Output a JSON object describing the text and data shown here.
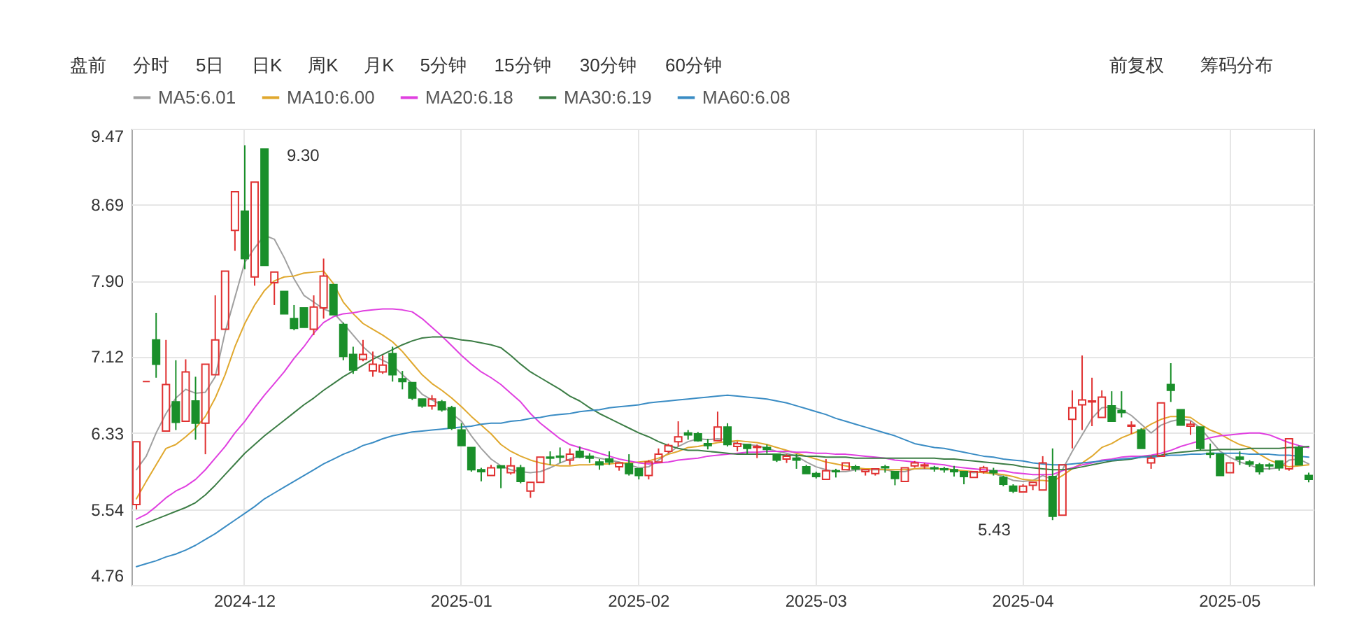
{
  "chart_data": {
    "type": "candlestick",
    "categories": [
      null,
      null,
      null,
      null,
      null,
      null,
      null,
      null,
      null,
      null,
      null,
      "2024-12",
      null,
      null,
      null,
      null,
      null,
      null,
      null,
      null,
      null,
      null,
      null,
      null,
      null,
      null,
      null,
      null,
      null,
      null,
      null,
      null,
      null,
      "2025-01",
      null,
      null,
      null,
      null,
      null,
      null,
      null,
      null,
      null,
      null,
      null,
      null,
      null,
      null,
      null,
      null,
      null,
      "2025-02",
      null,
      null,
      null,
      null,
      null,
      null,
      null,
      null,
      null,
      null,
      null,
      null,
      null,
      null,
      null,
      null,
      null,
      "2025-03",
      null,
      null,
      null,
      null,
      null,
      null,
      null,
      null,
      null,
      null,
      null,
      null,
      null,
      null,
      null,
      null,
      null,
      null,
      null,
      null,
      "2025-04",
      null,
      null,
      null,
      null,
      null,
      null,
      null,
      null,
      null,
      null,
      null,
      null,
      null,
      null,
      null,
      null,
      null,
      null,
      null,
      null,
      "2025-05",
      null,
      null,
      null,
      null,
      null,
      null,
      null,
      null
    ],
    "ohlc": [
      [
        5.59,
        6.24,
        5.54,
        6.24
      ],
      [
        6.86,
        6.86,
        6.86,
        6.86
      ],
      [
        7.29,
        7.57,
        6.9,
        7.04
      ],
      [
        6.35,
        7.29,
        6.35,
        6.83
      ],
      [
        6.65,
        7.08,
        6.36,
        6.44
      ],
      [
        6.45,
        7.09,
        6.45,
        6.96
      ],
      [
        6.66,
        6.91,
        6.26,
        6.43
      ],
      [
        6.43,
        7.04,
        6.11,
        7.04
      ],
      [
        6.93,
        7.75,
        6.93,
        7.29
      ],
      [
        7.4,
        8.0,
        7.4,
        8.0
      ],
      [
        8.42,
        8.82,
        8.21,
        8.82
      ],
      [
        8.62,
        9.3,
        8.02,
        8.13
      ],
      [
        7.94,
        8.92,
        7.85,
        8.92
      ],
      [
        9.26,
        9.26,
        8.06,
        8.06
      ],
      [
        7.88,
        7.99,
        7.65,
        7.99
      ],
      [
        7.79,
        7.79,
        7.56,
        7.56
      ],
      [
        7.51,
        7.65,
        7.39,
        7.41
      ],
      [
        7.62,
        7.62,
        7.42,
        7.42
      ],
      [
        7.4,
        7.75,
        7.34,
        7.63
      ],
      [
        7.62,
        8.13,
        7.51,
        7.95
      ],
      [
        7.86,
        7.86,
        7.55,
        7.55
      ],
      [
        7.45,
        7.47,
        7.08,
        7.12
      ],
      [
        7.14,
        7.22,
        6.94,
        6.98
      ],
      [
        7.09,
        7.29,
        7.07,
        7.14
      ],
      [
        6.97,
        7.17,
        6.91,
        7.04
      ],
      [
        6.96,
        7.13,
        6.94,
        7.03
      ],
      [
        7.15,
        7.22,
        6.86,
        6.93
      ],
      [
        6.89,
        6.97,
        6.78,
        6.86
      ],
      [
        6.85,
        6.85,
        6.67,
        6.69
      ],
      [
        6.68,
        6.68,
        6.59,
        6.61
      ],
      [
        6.61,
        6.72,
        6.57,
        6.68
      ],
      [
        6.65,
        6.67,
        6.55,
        6.57
      ],
      [
        6.59,
        6.61,
        6.36,
        6.38
      ],
      [
        6.36,
        6.43,
        6.2,
        6.2
      ],
      [
        6.18,
        6.18,
        5.93,
        5.95
      ],
      [
        5.95,
        5.97,
        5.83,
        5.93
      ],
      [
        5.89,
        6.0,
        5.89,
        5.97
      ],
      [
        5.99,
        5.99,
        5.76,
        5.97
      ],
      [
        5.92,
        6.08,
        5.9,
        5.99
      ],
      [
        5.97,
        6.0,
        5.81,
        5.83
      ],
      [
        5.73,
        5.82,
        5.66,
        5.82
      ],
      [
        5.82,
        6.08,
        5.82,
        6.08
      ],
      [
        6.08,
        6.14,
        6.0,
        6.07
      ],
      [
        6.09,
        6.18,
        6.02,
        6.08
      ],
      [
        6.05,
        6.17,
        6.0,
        6.11
      ],
      [
        6.14,
        6.19,
        6.07,
        6.08
      ],
      [
        6.09,
        6.12,
        6.02,
        6.07
      ],
      [
        6.03,
        6.06,
        5.95,
        6.0
      ],
      [
        6.06,
        6.14,
        6.0,
        6.03
      ],
      [
        5.98,
        6.02,
        5.94,
        6.02
      ],
      [
        6.01,
        6.11,
        5.89,
        5.91
      ],
      [
        5.96,
        5.96,
        5.85,
        5.89
      ],
      [
        5.89,
        6.05,
        5.85,
        6.03
      ],
      [
        6.03,
        6.17,
        6.03,
        6.11
      ],
      [
        6.14,
        6.22,
        6.12,
        6.2
      ],
      [
        6.24,
        6.45,
        6.19,
        6.29
      ],
      [
        6.33,
        6.36,
        6.26,
        6.31
      ],
      [
        6.32,
        6.34,
        6.24,
        6.25
      ],
      [
        6.22,
        6.27,
        6.16,
        6.2
      ],
      [
        6.25,
        6.55,
        6.25,
        6.39
      ],
      [
        6.39,
        6.43,
        6.19,
        6.21
      ],
      [
        6.19,
        6.24,
        6.14,
        6.22
      ],
      [
        6.21,
        6.21,
        6.11,
        6.17
      ],
      [
        6.18,
        6.21,
        6.07,
        6.19
      ],
      [
        6.18,
        6.21,
        6.12,
        6.16
      ],
      [
        6.11,
        6.11,
        6.03,
        6.05
      ],
      [
        6.06,
        6.11,
        6.02,
        6.09
      ],
      [
        6.07,
        6.11,
        5.96,
        6.05
      ],
      [
        5.98,
        6.0,
        5.91,
        5.91
      ],
      [
        5.91,
        5.93,
        5.86,
        5.88
      ],
      [
        5.85,
        6.06,
        5.85,
        5.94
      ],
      [
        5.94,
        5.96,
        5.87,
        5.93
      ],
      [
        5.95,
        6.02,
        5.95,
        6.02
      ],
      [
        5.98,
        6.0,
        5.93,
        5.96
      ],
      [
        5.93,
        5.95,
        5.89,
        5.95
      ],
      [
        5.91,
        5.96,
        5.89,
        5.96
      ],
      [
        5.98,
        6.0,
        5.92,
        5.97
      ],
      [
        5.93,
        5.93,
        5.79,
        5.86
      ],
      [
        5.83,
        5.97,
        5.83,
        5.97
      ],
      [
        5.99,
        6.04,
        5.97,
        6.02
      ],
      [
        5.99,
        6.02,
        5.96,
        6.0
      ],
      [
        5.97,
        5.99,
        5.93,
        5.96
      ],
      [
        5.96,
        5.98,
        5.92,
        5.95
      ],
      [
        5.95,
        5.99,
        5.88,
        5.93
      ],
      [
        5.93,
        5.93,
        5.8,
        5.88
      ],
      [
        5.87,
        5.93,
        5.87,
        5.93
      ],
      [
        5.93,
        5.99,
        5.91,
        5.97
      ],
      [
        5.94,
        5.97,
        5.89,
        5.92
      ],
      [
        5.87,
        5.89,
        5.78,
        5.8
      ],
      [
        5.78,
        5.8,
        5.71,
        5.73
      ],
      [
        5.72,
        5.8,
        5.72,
        5.78
      ],
      [
        5.79,
        5.82,
        5.74,
        5.82
      ],
      [
        5.74,
        6.09,
        5.74,
        6.02
      ],
      [
        5.88,
        6.17,
        5.43,
        5.47
      ],
      [
        5.48,
        6.0,
        5.48,
        6.0
      ],
      [
        6.47,
        6.77,
        6.17,
        6.59
      ],
      [
        6.62,
        7.13,
        6.36,
        6.67
      ],
      [
        6.65,
        6.9,
        6.4,
        6.66
      ],
      [
        6.49,
        6.77,
        6.49,
        6.7
      ],
      [
        6.61,
        6.76,
        6.45,
        6.45
      ],
      [
        6.56,
        6.76,
        6.49,
        6.54
      ],
      [
        6.4,
        6.45,
        6.32,
        6.41
      ],
      [
        6.36,
        6.38,
        6.17,
        6.17
      ],
      [
        6.02,
        6.09,
        5.96,
        6.07
      ],
      [
        6.09,
        6.64,
        6.09,
        6.64
      ],
      [
        6.83,
        7.05,
        6.65,
        6.77
      ],
      [
        6.57,
        6.57,
        6.41,
        6.41
      ],
      [
        6.4,
        6.45,
        6.31,
        6.42
      ],
      [
        6.39,
        6.39,
        6.15,
        6.17
      ],
      [
        6.12,
        6.22,
        6.07,
        6.11
      ],
      [
        6.11,
        6.11,
        5.89,
        5.89
      ],
      [
        5.92,
        6.02,
        5.92,
        6.02
      ],
      [
        6.08,
        6.14,
        6.0,
        6.06
      ],
      [
        6.03,
        6.05,
        5.98,
        6.01
      ],
      [
        6.0,
        6.02,
        5.9,
        5.93
      ],
      [
        6.0,
        6.02,
        5.95,
        5.99
      ],
      [
        6.04,
        6.04,
        5.94,
        5.97
      ],
      [
        5.96,
        6.27,
        5.94,
        6.27
      ],
      [
        6.18,
        6.2,
        6.0,
        6.0
      ],
      [
        5.89,
        5.92,
        5.82,
        5.85
      ]
    ],
    "colors": [
      "#e03131",
      "#e03131",
      "#1a8f2a",
      "#e03131",
      "#1a8f2a",
      "#e03131",
      "#1a8f2a",
      "#e03131",
      "#e03131",
      "#e03131",
      "#e03131",
      "#1a8f2a",
      "#e03131",
      "#1a8f2a",
      "#e03131",
      "#1a8f2a",
      "#1a8f2a",
      "#1a8f2a",
      "#e03131",
      "#e03131",
      "#1a8f2a",
      "#1a8f2a",
      "#1a8f2a",
      "#e03131",
      "#e03131",
      "#e03131",
      "#1a8f2a",
      "#1a8f2a",
      "#1a8f2a",
      "#1a8f2a",
      "#e03131",
      "#1a8f2a",
      "#1a8f2a",
      "#1a8f2a",
      "#1a8f2a",
      "#1a8f2a",
      "#e03131",
      "#1a8f2a",
      "#e03131",
      "#1a8f2a",
      "#e03131",
      "#e03131",
      "#1a8f2a",
      "#1a8f2a",
      "#e03131",
      "#1a8f2a",
      "#1a8f2a",
      "#1a8f2a",
      "#1a8f2a",
      "#e03131",
      "#1a8f2a",
      "#1a8f2a",
      "#e03131",
      "#e03131",
      "#e03131",
      "#e03131",
      "#1a8f2a",
      "#1a8f2a",
      "#1a8f2a",
      "#e03131",
      "#1a8f2a",
      "#e03131",
      "#1a8f2a",
      "#e03131",
      "#1a8f2a",
      "#1a8f2a",
      "#e03131",
      "#1a8f2a",
      "#1a8f2a",
      "#1a8f2a",
      "#e03131",
      "#1a8f2a",
      "#e03131",
      "#1a8f2a",
      "#e03131",
      "#e03131",
      "#1a8f2a",
      "#1a8f2a",
      "#e03131",
      "#e03131",
      "#e03131",
      "#1a8f2a",
      "#1a8f2a",
      "#1a8f2a",
      "#1a8f2a",
      "#e03131",
      "#e03131",
      "#1a8f2a",
      "#1a8f2a",
      "#1a8f2a",
      "#e03131",
      "#e03131",
      "#e03131",
      "#1a8f2a",
      "#e03131",
      "#e03131",
      "#e03131",
      "#e03131",
      "#e03131",
      "#1a8f2a",
      "#1a8f2a",
      "#e03131",
      "#1a8f2a",
      "#e03131",
      "#e03131",
      "#1a8f2a",
      "#1a8f2a",
      "#e03131",
      "#1a8f2a",
      "#1a8f2a",
      "#1a8f2a",
      "#e03131",
      "#1a8f2a",
      "#1a8f2a",
      "#1a8f2a",
      "#1a8f2a",
      "#1a8f2a",
      "#e03131",
      "#1a8f2a",
      "#1a8f2a"
    ],
    "series": [
      {
        "name": "MA5:6.01",
        "color": "#a0a0a0",
        "type": "line",
        "values": [
          5.95,
          6.09,
          6.33,
          6.53,
          6.69,
          6.78,
          6.74,
          6.75,
          6.91,
          7.37,
          7.73,
          8.09,
          8.24,
          8.37,
          8.33,
          8.14,
          7.92,
          7.75,
          7.68,
          7.61,
          7.57,
          7.46,
          7.34,
          7.22,
          7.13,
          7.08,
          7.03,
          6.93,
          6.84,
          6.73,
          6.67,
          6.62,
          6.53,
          6.45,
          6.3,
          6.17,
          6.06,
          5.99,
          5.95,
          5.93,
          5.92,
          5.93,
          5.97,
          6.02,
          6.06,
          6.09,
          6.09,
          6.07,
          6.05,
          6.03,
          6.0,
          5.97,
          5.98,
          6.05,
          6.12,
          6.19,
          6.24,
          6.27,
          6.26,
          6.27,
          6.26,
          6.22,
          6.21,
          6.2,
          6.17,
          6.14,
          6.12,
          6.09,
          6.03,
          5.98,
          5.95,
          5.93,
          5.93,
          5.95,
          5.95,
          5.95,
          5.95,
          5.93,
          5.93,
          5.96,
          5.96,
          5.96,
          5.96,
          5.95,
          5.93,
          5.92,
          5.93,
          5.91,
          5.88,
          5.84,
          5.83,
          5.84,
          5.89,
          5.85,
          5.95,
          6.14,
          6.31,
          6.48,
          6.59,
          6.6,
          6.57,
          6.51,
          6.42,
          6.33,
          6.41,
          6.45,
          6.47,
          6.46,
          6.38,
          6.26,
          6.14,
          6.08,
          6.03,
          6.0,
          5.96,
          5.96,
          5.97,
          6.05,
          6.06,
          6.01
        ]
      },
      {
        "name": "MA10:6.00",
        "color": "#e0a82e",
        "type": "line",
        "values": [
          5.65,
          5.83,
          6.0,
          6.17,
          6.21,
          6.29,
          6.38,
          6.5,
          6.69,
          6.93,
          7.22,
          7.46,
          7.65,
          7.8,
          7.9,
          7.94,
          7.95,
          7.98,
          7.99,
          8.0,
          7.87,
          7.68,
          7.56,
          7.46,
          7.4,
          7.34,
          7.27,
          7.17,
          7.05,
          6.93,
          6.84,
          6.77,
          6.69,
          6.6,
          6.5,
          6.41,
          6.32,
          6.21,
          6.14,
          6.09,
          6.05,
          6.02,
          6.0,
          5.99,
          5.99,
          6.0,
          6.0,
          6.01,
          6.01,
          6.02,
          6.02,
          6.03,
          6.04,
          6.07,
          6.11,
          6.14,
          6.18,
          6.19,
          6.21,
          6.23,
          6.24,
          6.25,
          6.24,
          6.23,
          6.21,
          6.18,
          6.15,
          6.12,
          6.09,
          6.06,
          6.03,
          6.01,
          5.99,
          5.97,
          5.96,
          5.96,
          5.95,
          5.95,
          5.95,
          5.96,
          5.97,
          5.96,
          5.96,
          5.95,
          5.94,
          5.93,
          5.92,
          5.91,
          5.9,
          5.88,
          5.85,
          5.84,
          5.84,
          5.83,
          5.89,
          5.96,
          6.02,
          6.09,
          6.18,
          6.22,
          6.28,
          6.32,
          6.36,
          6.42,
          6.47,
          6.5,
          6.5,
          6.49,
          6.42,
          6.36,
          6.32,
          6.26,
          6.21,
          6.18,
          6.11,
          6.05,
          6.01,
          5.98,
          5.99,
          6.0
        ]
      },
      {
        "name": "MA20:6.18",
        "color": "#e040e0",
        "type": "line",
        "values": [
          5.44,
          5.49,
          5.57,
          5.66,
          5.73,
          5.78,
          5.85,
          5.95,
          6.07,
          6.19,
          6.33,
          6.45,
          6.59,
          6.72,
          6.84,
          6.96,
          7.1,
          7.22,
          7.36,
          7.47,
          7.53,
          7.56,
          7.57,
          7.59,
          7.6,
          7.61,
          7.61,
          7.6,
          7.58,
          7.51,
          7.42,
          7.33,
          7.23,
          7.13,
          7.04,
          6.96,
          6.9,
          6.83,
          6.74,
          6.65,
          6.53,
          6.43,
          6.35,
          6.27,
          6.21,
          6.18,
          6.15,
          6.12,
          6.09,
          6.06,
          6.04,
          6.02,
          6.01,
          6.02,
          6.03,
          6.05,
          6.06,
          6.07,
          6.09,
          6.1,
          6.11,
          6.12,
          6.13,
          6.13,
          6.14,
          6.14,
          6.14,
          6.13,
          6.13,
          6.12,
          6.12,
          6.11,
          6.11,
          6.1,
          6.09,
          6.08,
          6.07,
          6.05,
          6.04,
          6.03,
          6.02,
          6.01,
          6.0,
          5.98,
          5.97,
          5.96,
          5.95,
          5.94,
          5.94,
          5.92,
          5.91,
          5.9,
          5.9,
          5.9,
          5.94,
          5.97,
          6.0,
          6.02,
          6.05,
          6.06,
          6.08,
          6.09,
          6.09,
          6.1,
          6.12,
          6.15,
          6.19,
          6.22,
          6.25,
          6.28,
          6.3,
          6.31,
          6.32,
          6.33,
          6.33,
          6.31,
          6.27,
          6.23,
          6.2,
          6.18
        ]
      },
      {
        "name": "MA30:6.19",
        "color": "#3c7d45",
        "type": "line",
        "values": [
          5.36,
          5.4,
          5.44,
          5.48,
          5.52,
          5.56,
          5.61,
          5.69,
          5.79,
          5.9,
          6.01,
          6.12,
          6.21,
          6.3,
          6.38,
          6.46,
          6.54,
          6.62,
          6.69,
          6.77,
          6.84,
          6.91,
          6.97,
          7.03,
          7.09,
          7.14,
          7.19,
          7.24,
          7.28,
          7.31,
          7.32,
          7.32,
          7.31,
          7.29,
          7.28,
          7.26,
          7.24,
          7.21,
          7.13,
          7.04,
          6.96,
          6.9,
          6.84,
          6.78,
          6.71,
          6.66,
          6.59,
          6.53,
          6.48,
          6.43,
          6.38,
          6.33,
          6.29,
          6.24,
          6.2,
          6.17,
          6.15,
          6.15,
          6.14,
          6.13,
          6.12,
          6.11,
          6.11,
          6.11,
          6.11,
          6.11,
          6.1,
          6.1,
          6.09,
          6.09,
          6.08,
          6.08,
          6.08,
          6.07,
          6.07,
          6.07,
          6.07,
          6.07,
          6.07,
          6.07,
          6.07,
          6.07,
          6.06,
          6.06,
          6.05,
          6.04,
          6.03,
          6.02,
          6.01,
          6.0,
          5.98,
          5.97,
          5.96,
          5.95,
          5.95,
          5.96,
          5.98,
          6.0,
          6.02,
          6.04,
          6.05,
          6.06,
          6.08,
          6.09,
          6.1,
          6.12,
          6.13,
          6.14,
          6.15,
          6.15,
          6.16,
          6.16,
          6.16,
          6.17,
          6.17,
          6.17,
          6.17,
          6.18,
          6.18,
          6.19
        ]
      },
      {
        "name": "MA60:6.08",
        "color": "#3a8cc4",
        "type": "line",
        "values": [
          4.95,
          4.98,
          5.01,
          5.05,
          5.08,
          5.12,
          5.17,
          5.23,
          5.29,
          5.36,
          5.43,
          5.5,
          5.57,
          5.65,
          5.71,
          5.77,
          5.83,
          5.89,
          5.95,
          6.01,
          6.06,
          6.11,
          6.15,
          6.2,
          6.23,
          6.27,
          6.3,
          6.32,
          6.34,
          6.35,
          6.36,
          6.37,
          6.38,
          6.39,
          6.4,
          6.42,
          6.43,
          6.43,
          6.45,
          6.46,
          6.48,
          6.49,
          6.51,
          6.52,
          6.53,
          6.55,
          6.56,
          6.57,
          6.59,
          6.6,
          6.61,
          6.62,
          6.64,
          6.65,
          6.66,
          6.67,
          6.68,
          6.69,
          6.7,
          6.71,
          6.72,
          6.71,
          6.7,
          6.69,
          6.68,
          6.66,
          6.64,
          6.61,
          6.58,
          6.55,
          6.52,
          6.48,
          6.45,
          6.42,
          6.39,
          6.36,
          6.33,
          6.3,
          6.26,
          6.22,
          6.2,
          6.18,
          6.17,
          6.15,
          6.13,
          6.11,
          6.09,
          6.08,
          6.06,
          6.05,
          6.04,
          6.02,
          6.01,
          6.0,
          6.0,
          6.01,
          6.02,
          6.03,
          6.04,
          6.05,
          6.06,
          6.07,
          6.08,
          6.08,
          6.09,
          6.1,
          6.1,
          6.11,
          6.11,
          6.12,
          6.12,
          6.12,
          6.12,
          6.11,
          6.11,
          6.11,
          6.1,
          6.1,
          6.09,
          6.08
        ]
      }
    ],
    "ylim": [
      4.76,
      9.47
    ],
    "yticks": [
      4.76,
      5.54,
      6.33,
      7.12,
      {
        "value": 7.9,
        "label": "7.90"
      },
      8.69,
      9.47
    ],
    "grid": true,
    "legend": "top left",
    "annotations": [
      "盘前",
      "分时",
      "5日",
      "日K",
      "周K",
      "月K",
      "5分钟",
      "15分钟",
      "30分钟",
      "60分钟",
      "前复权",
      "筹码分布",
      "9.30",
      "5.43"
    ]
  }
}
